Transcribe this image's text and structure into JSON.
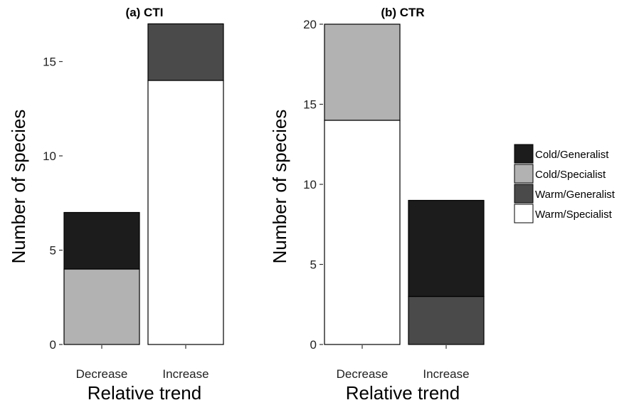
{
  "chart_data": [
    {
      "type": "bar",
      "stacked": true,
      "title": "(a) CTI",
      "xlabel": "Relative trend",
      "ylabel": "Number of species",
      "categories": [
        "Decrease",
        "Increase"
      ],
      "ylim": [
        0,
        17
      ],
      "yticks": [
        0,
        5,
        10,
        15
      ],
      "series": [
        {
          "name": "Warm/Specialist",
          "values": [
            0,
            14
          ]
        },
        {
          "name": "Warm/Generalist",
          "values": [
            0,
            3
          ]
        },
        {
          "name": "Cold/Specialist",
          "values": [
            4,
            0
          ]
        },
        {
          "name": "Cold/Generalist",
          "values": [
            3,
            0
          ]
        }
      ]
    },
    {
      "type": "bar",
      "stacked": true,
      "title": "(b) CTR",
      "xlabel": "Relative trend",
      "ylabel": "Number of species",
      "categories": [
        "Decrease",
        "Increase"
      ],
      "ylim": [
        0,
        20
      ],
      "yticks": [
        0,
        5,
        10,
        15,
        20
      ],
      "series": [
        {
          "name": "Warm/Specialist",
          "values": [
            14,
            0
          ]
        },
        {
          "name": "Warm/Generalist",
          "values": [
            0,
            3
          ]
        },
        {
          "name": "Cold/Specialist",
          "values": [
            6,
            0
          ]
        },
        {
          "name": "Cold/Generalist",
          "values": [
            0,
            6
          ]
        }
      ]
    }
  ],
  "legend": {
    "placement": "right",
    "entries": [
      {
        "label": "Cold/Generalist",
        "color": "#1c1c1c"
      },
      {
        "label": "Cold/Specialist",
        "color": "#b2b2b2"
      },
      {
        "label": "Warm/Generalist",
        "color": "#4a4a4a"
      },
      {
        "label": "Warm/Specialist",
        "color": "#ffffff"
      }
    ]
  },
  "stack_order": [
    "Warm/Specialist",
    "Warm/Generalist",
    "Cold/Specialist",
    "Cold/Generalist"
  ]
}
